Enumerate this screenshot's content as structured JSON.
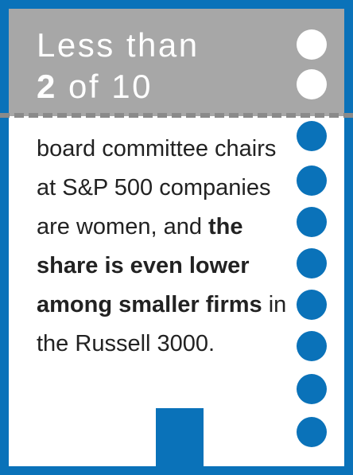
{
  "headline": {
    "line1": "Less than",
    "number": "2",
    "rest": " of 10"
  },
  "body": {
    "text1": "board committee chairs at S&P 500 companies are women, and ",
    "bold": "the share is even lower among smaller firms",
    "text2": " in the Russell 3000."
  }
}
